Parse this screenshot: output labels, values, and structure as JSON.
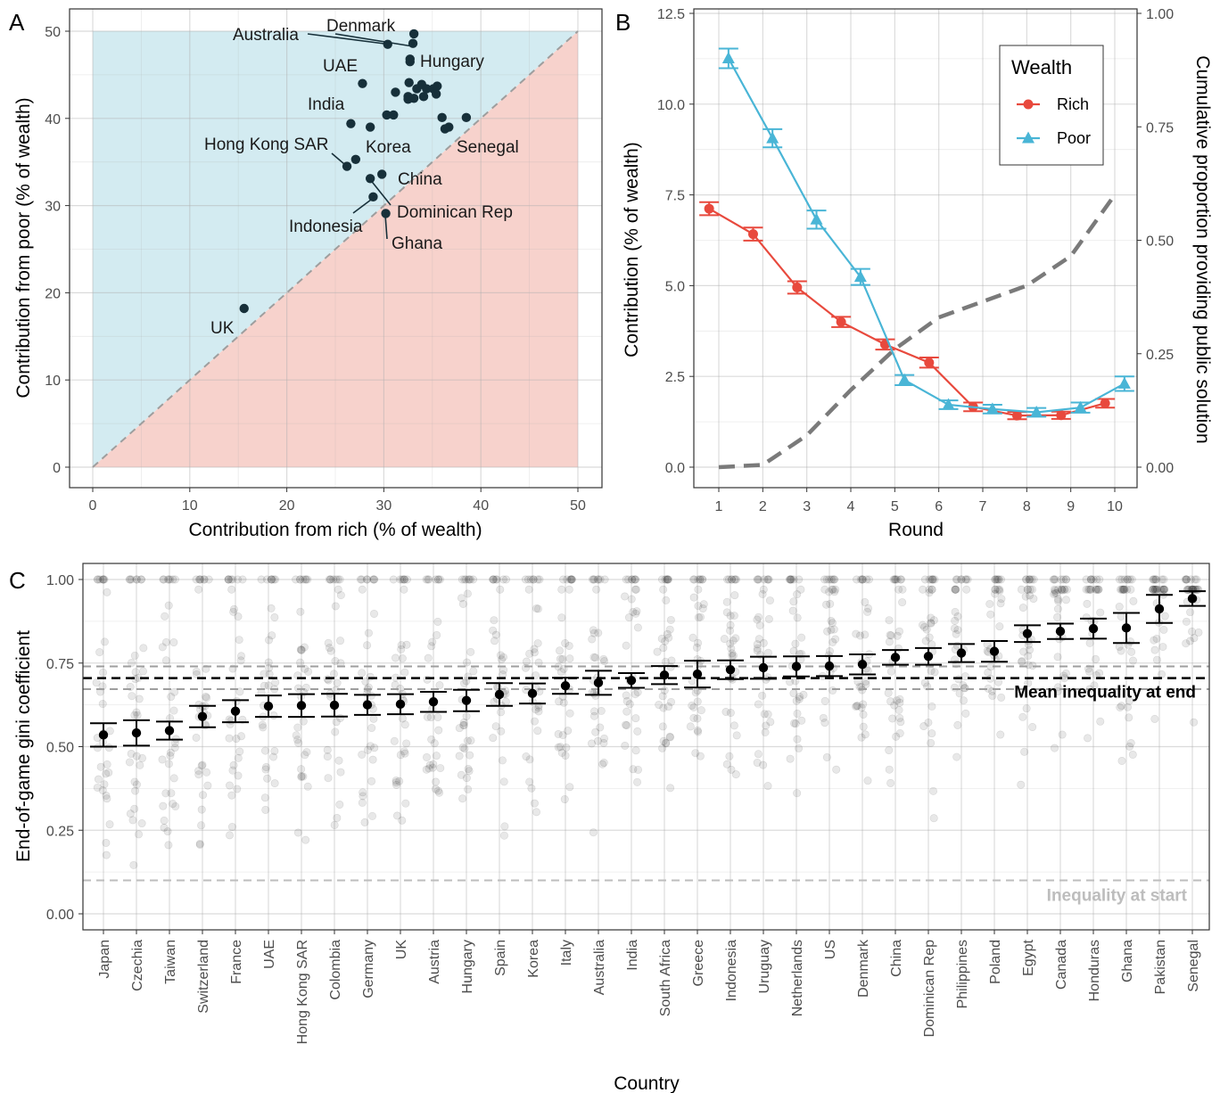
{
  "panels": {
    "a": {
      "label": "A"
    },
    "b": {
      "label": "B"
    },
    "c": {
      "label": "C"
    }
  },
  "chart_data": [
    {
      "panel": "A",
      "type": "scatter",
      "xlabel": "Contribution from rich (% of wealth)",
      "ylabel": "Contribution from poor (% of wealth)",
      "xlim": [
        0,
        50
      ],
      "ylim": [
        0,
        50
      ],
      "xticks": [
        0,
        10,
        20,
        30,
        40,
        50
      ],
      "yticks": [
        0,
        10,
        20,
        30,
        40,
        50
      ],
      "grid": true,
      "colors": {
        "poor_region": "#d3ebf1",
        "rich_region": "#f7d2cc",
        "points": "#17303a",
        "diagonal": "#9e9e9e"
      },
      "points": [
        {
          "x": 30.4,
          "y": 48.5,
          "label": "Australia"
        },
        {
          "x": 33.1,
          "y": 49.7,
          "label": "Denmark"
        },
        {
          "x": 32.7,
          "y": 46.5,
          "label": "Hungary"
        },
        {
          "x": 27.8,
          "y": 44.0,
          "label": "UAE"
        },
        {
          "x": 26.6,
          "y": 39.4,
          "label": "India"
        },
        {
          "x": 28.6,
          "y": 39.0,
          "label": "Korea"
        },
        {
          "x": 36.7,
          "y": 39.0,
          "label": "Senegal"
        },
        {
          "x": 26.2,
          "y": 34.5,
          "label": "Hong Kong SAR"
        },
        {
          "x": 29.8,
          "y": 33.6,
          "label": "China"
        },
        {
          "x": 28.6,
          "y": 33.1,
          "label": "Dominican Rep"
        },
        {
          "x": 28.9,
          "y": 31.0,
          "label": "Indonesia"
        },
        {
          "x": 30.2,
          "y": 29.1,
          "label": "Ghana"
        },
        {
          "x": 15.6,
          "y": 18.2,
          "label": "UK"
        },
        {
          "x": 33.0,
          "y": 48.6
        },
        {
          "x": 32.7,
          "y": 46.8
        },
        {
          "x": 31.0,
          "y": 40.4
        },
        {
          "x": 30.3,
          "y": 40.4
        },
        {
          "x": 31.2,
          "y": 43.0
        },
        {
          "x": 32.5,
          "y": 42.5
        },
        {
          "x": 32.6,
          "y": 44.1
        },
        {
          "x": 32.5,
          "y": 42.2
        },
        {
          "x": 33.4,
          "y": 43.4
        },
        {
          "x": 33.1,
          "y": 42.3
        },
        {
          "x": 34.1,
          "y": 42.5
        },
        {
          "x": 33.9,
          "y": 43.9
        },
        {
          "x": 34.4,
          "y": 43.4
        },
        {
          "x": 35.1,
          "y": 43.4
        },
        {
          "x": 35.5,
          "y": 43.7
        },
        {
          "x": 35.4,
          "y": 42.8
        },
        {
          "x": 36.0,
          "y": 40.1
        },
        {
          "x": 36.3,
          "y": 38.8
        },
        {
          "x": 38.5,
          "y": 40.1
        },
        {
          "x": 27.1,
          "y": 35.3
        }
      ]
    },
    {
      "panel": "B",
      "type": "line",
      "xlabel": "Round",
      "ylabel": "Contribution (% of wealth)",
      "y2label": "Cumulative proportion providing public solution",
      "x": [
        1,
        2,
        3,
        4,
        5,
        6,
        7,
        8,
        9,
        10
      ],
      "xlim": [
        0.4,
        10.6
      ],
      "ylim": [
        -0.55,
        12.5
      ],
      "yticks": [
        0.0,
        2.5,
        5.0,
        7.5,
        10.0,
        12.5
      ],
      "ytick_labels": [
        "0.0",
        "2.5",
        "5.0",
        "7.5",
        "10.0",
        "12.5"
      ],
      "y2lim": [
        -0.044,
        1.0
      ],
      "y2ticks": [
        0.0,
        0.25,
        0.5,
        0.75,
        1.0
      ],
      "y2tick_labels": [
        "0.00",
        "0.25",
        "0.50",
        "0.75",
        "1.00"
      ],
      "grid": true,
      "legend": {
        "title": "Wealth",
        "placement": "top-right"
      },
      "series": [
        {
          "name": "Rich",
          "color": "#e8493d",
          "marker": "circle",
          "dodge": -0.22,
          "values": [
            7.12,
            6.42,
            4.95,
            4.0,
            3.38,
            2.88,
            1.66,
            1.42,
            1.43,
            1.76
          ],
          "err": [
            0.18,
            0.18,
            0.17,
            0.14,
            0.14,
            0.14,
            0.12,
            0.1,
            0.1,
            0.12
          ]
        },
        {
          "name": "Poor",
          "color": "#49b5d6",
          "marker": "triangle",
          "dodge": 0.22,
          "values": [
            11.26,
            9.06,
            6.82,
            5.24,
            2.4,
            1.72,
            1.6,
            1.51,
            1.64,
            2.3
          ],
          "err": [
            0.27,
            0.25,
            0.25,
            0.22,
            0.14,
            0.12,
            0.12,
            0.12,
            0.14,
            0.2
          ]
        },
        {
          "name": "Cumulative proportion",
          "axis": "y2",
          "color": "#7a7a7a",
          "style": "dashed",
          "values": [
            0.0,
            0.005,
            0.07,
            0.17,
            0.26,
            0.33,
            0.365,
            0.4,
            0.465,
            0.6
          ]
        }
      ]
    },
    {
      "panel": "C",
      "type": "scatter",
      "xlabel": "Country",
      "ylabel": "End-of-game gini coefficient",
      "ylim": [
        -0.045,
        1.045
      ],
      "yticks": [
        0.0,
        0.25,
        0.5,
        0.75,
        1.0
      ],
      "ytick_labels": [
        "0.00",
        "0.25",
        "0.50",
        "0.75",
        "1.00"
      ],
      "grid": true,
      "categories": [
        "Japan",
        "Czechia",
        "Taiwan",
        "Switzerland",
        "France",
        "UAE",
        "Hong Kong SAR",
        "Colombia",
        "Germany",
        "UK",
        "Austria",
        "Hungary",
        "Spain",
        "Korea",
        "Italy",
        "Australia",
        "India",
        "South Africa",
        "Greece",
        "Indonesia",
        "Uruguay",
        "Netherlands",
        "US",
        "Denmark",
        "China",
        "Dominican Rep",
        "Philippines",
        "Poland",
        "Egypt",
        "Canada",
        "Honduras",
        "Ghana",
        "Pakistan",
        "Senegal"
      ],
      "means": [
        0.535,
        0.541,
        0.548,
        0.59,
        0.606,
        0.621,
        0.623,
        0.624,
        0.625,
        0.627,
        0.634,
        0.638,
        0.656,
        0.659,
        0.682,
        0.691,
        0.698,
        0.714,
        0.717,
        0.73,
        0.736,
        0.74,
        0.741,
        0.746,
        0.767,
        0.77,
        0.78,
        0.785,
        0.838,
        0.845,
        0.853,
        0.855,
        0.912,
        0.943
      ],
      "err": [
        0.035,
        0.038,
        0.027,
        0.032,
        0.033,
        0.032,
        0.034,
        0.034,
        0.03,
        0.03,
        0.03,
        0.032,
        0.034,
        0.03,
        0.024,
        0.036,
        0.022,
        0.027,
        0.04,
        0.028,
        0.033,
        0.03,
        0.03,
        0.03,
        0.022,
        0.025,
        0.027,
        0.031,
        0.025,
        0.023,
        0.03,
        0.045,
        0.042,
        0.022
      ],
      "reference_lines": [
        {
          "label": "Mean inequality at end",
          "y": 0.705,
          "band": [
            0.672,
            0.74
          ],
          "color": "#000000"
        },
        {
          "label": "Inequality at start",
          "y": 0.1,
          "color": "#bdbdbd"
        }
      ]
    }
  ]
}
